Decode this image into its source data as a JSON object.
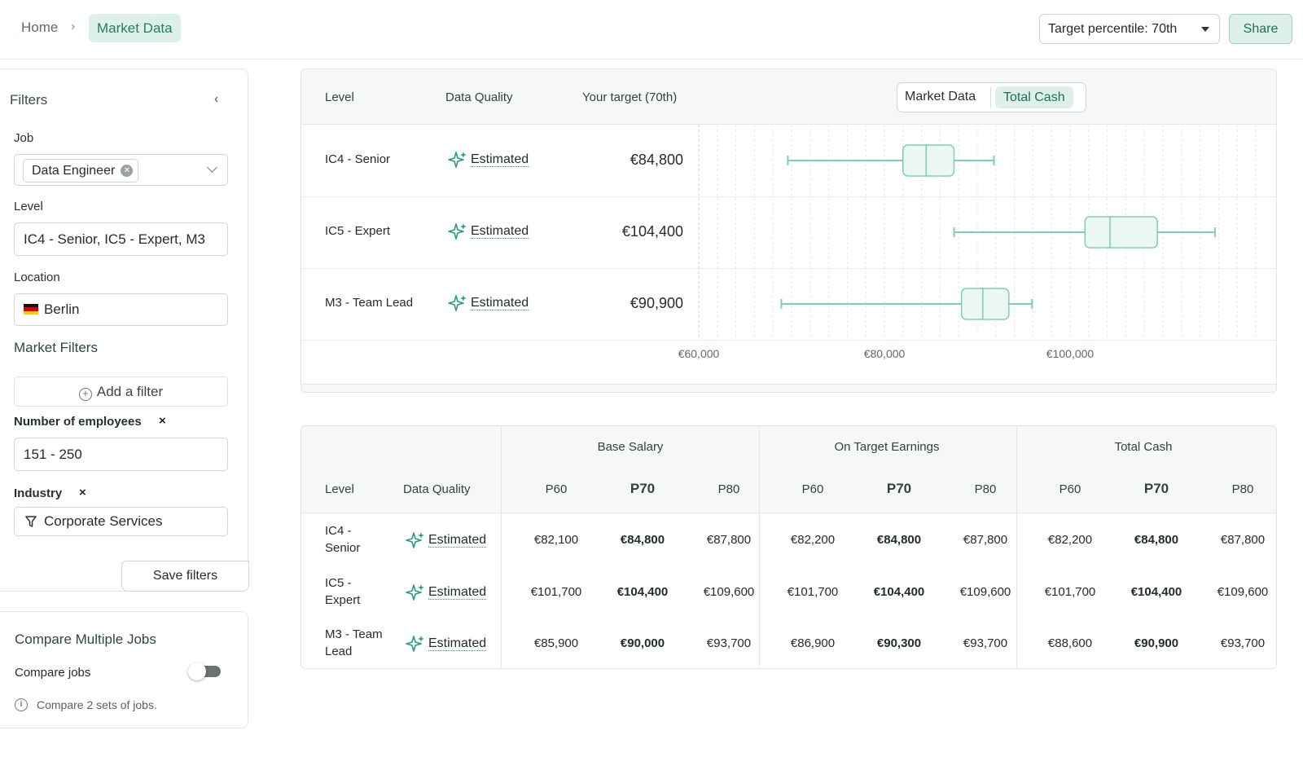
{
  "breadcrumb": {
    "home": "Home",
    "separator": "›",
    "current": "Market Data"
  },
  "header": {
    "percentile_select": "Target percentile: 70th",
    "share": "Share"
  },
  "sidebar": {
    "title": "Filters",
    "job": {
      "label": "Job",
      "chip": "Data Engineer"
    },
    "level": {
      "label": "Level",
      "value": "IC4 - Senior, IC5 - Expert, M3"
    },
    "location": {
      "label": "Location",
      "value": "Berlin"
    },
    "market_filters": {
      "title": "Market Filters",
      "add": "Add a filter"
    },
    "employees": {
      "label": "Number of employees",
      "remove": "×",
      "value": "151 - 250"
    },
    "industry": {
      "label": "Industry",
      "remove": "×",
      "value": "Corporate Services"
    },
    "save": "Save filters",
    "compare": {
      "title": "Compare Multiple Jobs",
      "toggle_label": "Compare jobs",
      "enabled": false,
      "note": "Compare 2 sets of jobs."
    }
  },
  "chart": {
    "headers": {
      "level": "Level",
      "quality": "Data Quality",
      "target": "Your target (70th)"
    },
    "toggle": {
      "a": "Market Data",
      "b": "Total Cash",
      "active": "Total Cash"
    },
    "rows": [
      {
        "level": "IC4 - Senior",
        "quality": "Estimated",
        "target": "€84,800",
        "min": 69600,
        "q1": 82000,
        "median": 84500,
        "q3": 87500,
        "max": 91800
      },
      {
        "level": "IC5 - Expert",
        "quality": "Estimated",
        "target": "€104,400",
        "min": 87500,
        "q1": 101600,
        "median": 104300,
        "q3": 109400,
        "max": 115600
      },
      {
        "level": "M3 - Team Lead",
        "quality": "Estimated",
        "target": "€90,900",
        "min": 68900,
        "q1": 88300,
        "median": 90600,
        "q3": 93400,
        "max": 95900
      }
    ],
    "axis_ticks": [
      "€60,000",
      "€80,000",
      "€100,000"
    ],
    "axis_tick_values": [
      60000,
      80000,
      100000
    ]
  },
  "table": {
    "groups": [
      "Base Salary",
      "On Target Earnings",
      "Total Cash"
    ],
    "level_header": "Level",
    "quality_header": "Data Quality",
    "percentiles": [
      "P60",
      "P70",
      "P80"
    ],
    "rows": [
      {
        "level": "IC4 - Senior",
        "quality": "Estimated",
        "values": [
          "€82,100",
          "€84,800",
          "€87,800",
          "€82,200",
          "€84,800",
          "€87,800",
          "€82,200",
          "€84,800",
          "€87,800"
        ]
      },
      {
        "level": "IC5 - Expert",
        "quality": "Estimated",
        "values": [
          "€101,700",
          "€104,400",
          "€109,600",
          "€101,700",
          "€104,400",
          "€109,600",
          "€101,700",
          "€104,400",
          "€109,600"
        ]
      },
      {
        "level": "M3 - Team Lead",
        "quality": "Estimated",
        "values": [
          "€85,900",
          "€90,000",
          "€93,700",
          "€86,900",
          "€90,300",
          "€93,700",
          "€88,600",
          "€90,900",
          "€93,700"
        ]
      }
    ]
  },
  "colors": {
    "accent": "#2a9a80",
    "accent_light": "#ddf1ea",
    "box_fill": "#eaf7f2",
    "box_stroke": "#7fcdb5"
  }
}
